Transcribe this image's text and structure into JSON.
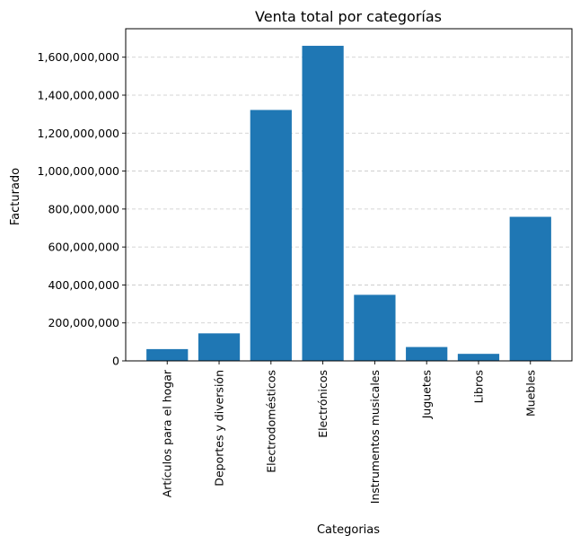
{
  "chart_data": {
    "type": "bar",
    "title": "Venta total por categorías",
    "xlabel": "Categorias",
    "ylabel": "Facturado",
    "categories": [
      "Artículos para el hogar",
      "Deportes y diversión",
      "Electrodomésticos",
      "Electrónicos",
      "Instrumentos musicales",
      "Juguetes",
      "Libros",
      "Muebles"
    ],
    "values": [
      62000000,
      145000000,
      1322000000,
      1660000000,
      348000000,
      73000000,
      37000000,
      759000000
    ],
    "ylim": [
      0,
      1750000000
    ],
    "yticks": [
      0,
      200000000,
      400000000,
      600000000,
      800000000,
      1000000000,
      1200000000,
      1400000000,
      1600000000
    ],
    "ytick_labels": [
      "0",
      "200,000,000",
      "400,000,000",
      "600,000,000",
      "800,000,000",
      "1,000,000,000",
      "1,200,000,000",
      "1,400,000,000",
      "1,600,000,000"
    ],
    "bar_color": "#1f77b4",
    "grid": "y-dashed"
  }
}
